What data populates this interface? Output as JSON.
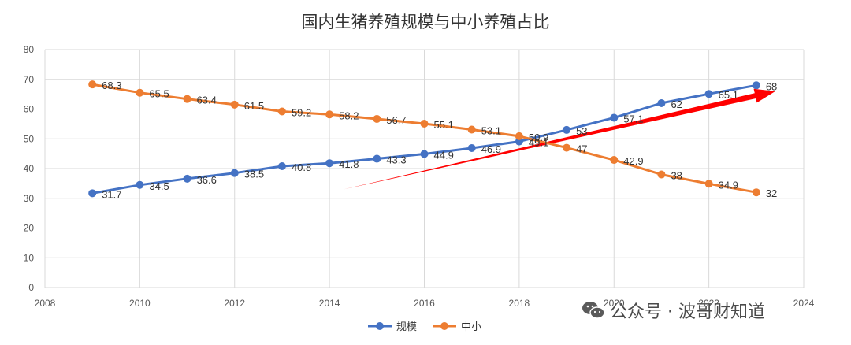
{
  "chart_data": {
    "type": "line",
    "title": "国内生猪养殖规模与中小养殖占比",
    "xlim": [
      2008,
      2024
    ],
    "ylim": [
      0,
      80
    ],
    "x_ticks": [
      2008,
      2010,
      2012,
      2014,
      2016,
      2018,
      2020,
      2022,
      2024
    ],
    "y_ticks": [
      0,
      10,
      20,
      30,
      40,
      50,
      60,
      70,
      80
    ],
    "grid": true,
    "legend": "bottom",
    "series": [
      {
        "name": "规模",
        "color": "#4472C4",
        "x": [
          2009,
          2010,
          2011,
          2012,
          2013,
          2014,
          2015,
          2016,
          2017,
          2018,
          2019,
          2020,
          2021,
          2022,
          2023
        ],
        "values": [
          31.7,
          34.5,
          36.6,
          38.5,
          40.8,
          41.8,
          43.3,
          44.9,
          46.9,
          49.1,
          53,
          57.1,
          62,
          65.1,
          68
        ]
      },
      {
        "name": "中小",
        "color": "#ED7D31",
        "x": [
          2009,
          2010,
          2011,
          2012,
          2013,
          2014,
          2015,
          2016,
          2017,
          2018,
          2019,
          2020,
          2021,
          2022,
          2023
        ],
        "values": [
          68.3,
          65.5,
          63.4,
          61.5,
          59.2,
          58.2,
          56.7,
          55.1,
          53.1,
          50.9,
          47,
          42.9,
          38,
          34.9,
          32
        ]
      }
    ],
    "annotation": {
      "type": "arrow",
      "color": "#FF0000",
      "from": [
        2014.3,
        33
      ],
      "to": [
        2023.4,
        66
      ]
    }
  },
  "watermark": {
    "icon": "wechat-icon",
    "text": "公众号 · 波哥财知道"
  }
}
